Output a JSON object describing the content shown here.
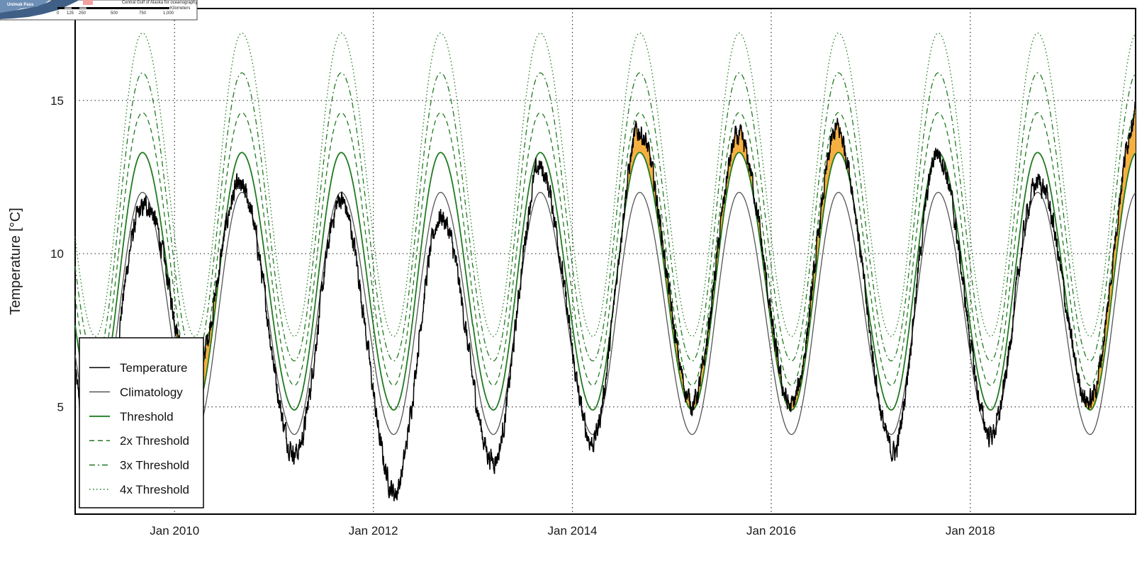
{
  "chart_data": {
    "type": "line",
    "ylabel": "Temperature [°C]",
    "xlabel": "",
    "ylim": [
      1.5,
      18.0
    ],
    "xlim": [
      "2009-01-01",
      "2019-08-31"
    ],
    "grid": true,
    "legend_position": "bottom-left",
    "x_ticks": [
      {
        "date": "2010-01-01",
        "label": "Jan 2010"
      },
      {
        "date": "2012-01-01",
        "label": "Jan 2012"
      },
      {
        "date": "2014-01-01",
        "label": "Jan 2014"
      },
      {
        "date": "2016-01-01",
        "label": "Jan 2016"
      },
      {
        "date": "2018-01-01",
        "label": "Jan 2018"
      }
    ],
    "y_ticks": [
      {
        "value": 5,
        "label": "5"
      },
      {
        "value": 10,
        "label": "10"
      },
      {
        "value": 15,
        "label": "15"
      }
    ],
    "seasonal_cycle": {
      "climatology_min": 4.1,
      "climatology_max": 12.0,
      "threshold_min": 4.9,
      "threshold_max": 13.3,
      "min_day_of_year": 75,
      "max_day_of_year": 247
    },
    "temperature_minima": [
      {
        "date": "2010-03-20",
        "value": 6.5
      },
      {
        "date": "2011-04-10",
        "value": 3.8
      },
      {
        "date": "2012-03-25",
        "value": 2.2
      },
      {
        "date": "2013-04-05",
        "value": 3.5
      },
      {
        "date": "2014-03-15",
        "value": 3.8
      },
      {
        "date": "2015-03-20",
        "value": 5.1
      },
      {
        "date": "2016-03-10",
        "value": 5.0
      },
      {
        "date": "2017-04-05",
        "value": 3.6
      },
      {
        "date": "2018-03-10",
        "value": 4.1
      },
      {
        "date": "2019-03-20",
        "value": 5.2
      }
    ],
    "temperature_maxima": [
      {
        "date": "2009-09-01",
        "value": 11.4
      },
      {
        "date": "2010-09-05",
        "value": 12.1
      },
      {
        "date": "2011-09-01",
        "value": 11.8
      },
      {
        "date": "2012-09-01",
        "value": 11.2
      },
      {
        "date": "2013-08-25",
        "value": 12.8
      },
      {
        "date": "2014-08-20",
        "value": 13.9
      },
      {
        "date": "2015-08-20",
        "value": 13.7
      },
      {
        "date": "2016-08-25",
        "value": 14.1
      },
      {
        "date": "2017-08-25",
        "value": 13.3
      },
      {
        "date": "2018-09-01",
        "value": 12.3
      },
      {
        "date": "2019-08-31",
        "value": 14.7
      }
    ],
    "series": [
      {
        "name": "Temperature",
        "color": "#000000",
        "style": "solid"
      },
      {
        "name": "Climatology",
        "color": "#555555",
        "style": "solid"
      },
      {
        "name": "Threshold",
        "color": "#1f7a1f",
        "style": "solid"
      },
      {
        "name": "2x Threshold",
        "color": "#1f7a1f",
        "style": "dashed"
      },
      {
        "name": "3x Threshold",
        "color": "#1f7a1f",
        "style": "dashdot"
      },
      {
        "name": "4x Threshold",
        "color": "#1f7a1f",
        "style": "dotted"
      }
    ],
    "event_fill_color": "#f5b041",
    "event_edge_color": "#e85c2b"
  },
  "legend": {
    "items": [
      {
        "label": "Temperature"
      },
      {
        "label": "Climatology"
      },
      {
        "label": "Threshold"
      },
      {
        "label": "2x Threshold"
      },
      {
        "label": "3x Threshold"
      },
      {
        "label": "4x Threshold"
      }
    ]
  },
  "inset_map": {
    "place_label": "Unimak Pass",
    "credit": "Central Gulf of Alaska for oceanography",
    "scale_labels": [
      "0",
      "125",
      "250",
      "500",
      "750",
      "1,000"
    ],
    "scale_unit": "Kilometers"
  }
}
